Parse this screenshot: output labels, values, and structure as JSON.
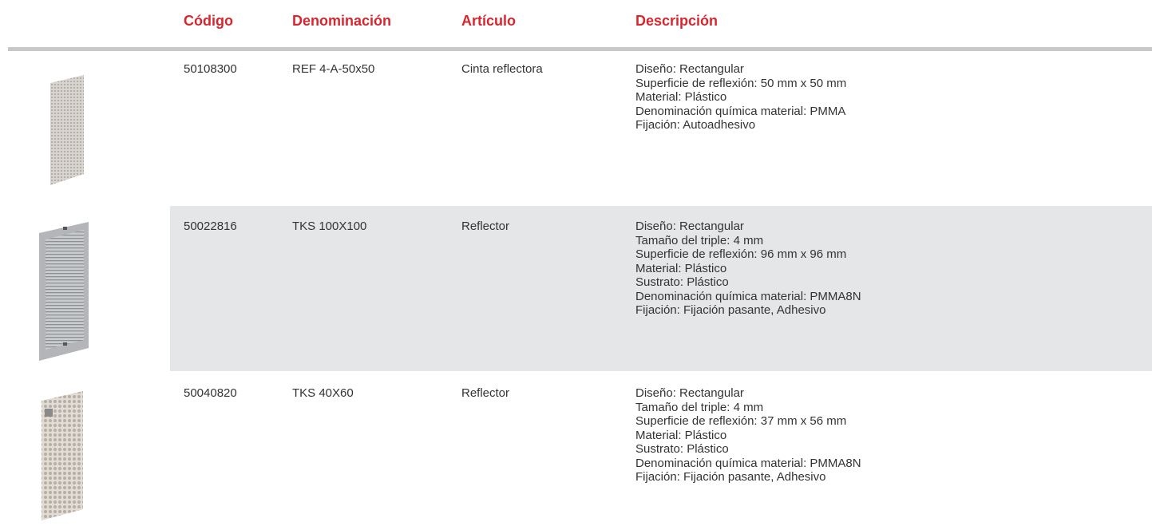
{
  "table": {
    "headers": [
      "Código",
      "Denominación",
      "Artículo",
      "Descripción"
    ],
    "rows": [
      {
        "code": "50108300",
        "name": "REF 4-A-50x50",
        "article": "Cinta reflectora",
        "description": [
          "Diseño: Rectangular",
          "Superficie de reflexión: 50 mm x 50 mm",
          "Material: Plástico",
          "Denominación química material: PMMA",
          "Fijación: Autoadhesivo"
        ]
      },
      {
        "code": "50022816",
        "name": "TKS 100X100",
        "article": "Reflector",
        "description": [
          "Diseño: Rectangular",
          "Tamaño del triple: 4 mm",
          "Superficie de reflexión: 96 mm x 96 mm",
          "Material: Plástico",
          "Sustrato: Plástico",
          "Denominación química material: PMMA8N",
          "Fijación: Fijación pasante, Adhesivo"
        ]
      },
      {
        "code": "50040820",
        "name": "TKS 40X60",
        "article": "Reflector",
        "description": [
          "Diseño: Rectangular",
          "Tamaño del triple: 4 mm",
          "Superficie de reflexión: 37 mm x 56 mm",
          "Material: Plástico",
          "Sustrato: Plástico",
          "Denominación química material: PMMA8N",
          "Fijación: Fijación pasante, Adhesivo"
        ]
      }
    ]
  }
}
